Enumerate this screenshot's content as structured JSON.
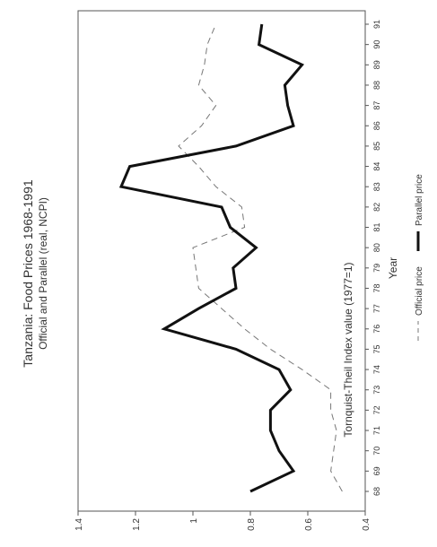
{
  "chart_data": {
    "type": "line",
    "orientation": "rotated-90-counterclockwise",
    "title": "Tanzania: Food Prices 1968-1991",
    "subtitle": "Official and Parallel (real, NCPI)",
    "xlabel": "Year",
    "ylabel": "Tornquist-Theil Index value (1977=1)",
    "categories": [
      "68",
      "69",
      "70",
      "71",
      "72",
      "73",
      "74",
      "75",
      "76",
      "77",
      "78",
      "79",
      "80",
      "81",
      "82",
      "83",
      "84",
      "85",
      "86",
      "87",
      "88",
      "89",
      "90",
      "91"
    ],
    "ylim": [
      0.4,
      1.4
    ],
    "yticks": [
      "0.4",
      "0.6",
      "0.8",
      "1",
      "1.2",
      "1.4"
    ],
    "grid": false,
    "legend_position": "bottom",
    "series": [
      {
        "name": "Official price",
        "style": "dashed",
        "color": "#777777",
        "width": 1,
        "values": [
          0.48,
          0.52,
          0.51,
          0.5,
          0.52,
          0.52,
          0.62,
          0.73,
          0.82,
          0.9,
          0.98,
          0.99,
          1.0,
          0.82,
          0.83,
          0.92,
          0.98,
          1.05,
          0.97,
          0.92,
          0.98,
          0.96,
          0.95,
          0.92
        ]
      },
      {
        "name": "Parallel price",
        "style": "solid",
        "color": "#111111",
        "width": 3,
        "values": [
          0.8,
          0.65,
          0.7,
          0.73,
          0.73,
          0.66,
          0.7,
          0.85,
          1.1,
          0.98,
          0.85,
          0.86,
          0.78,
          0.87,
          0.9,
          1.25,
          1.22,
          0.85,
          0.65,
          0.67,
          0.68,
          0.62,
          0.77,
          0.76
        ]
      }
    ]
  }
}
